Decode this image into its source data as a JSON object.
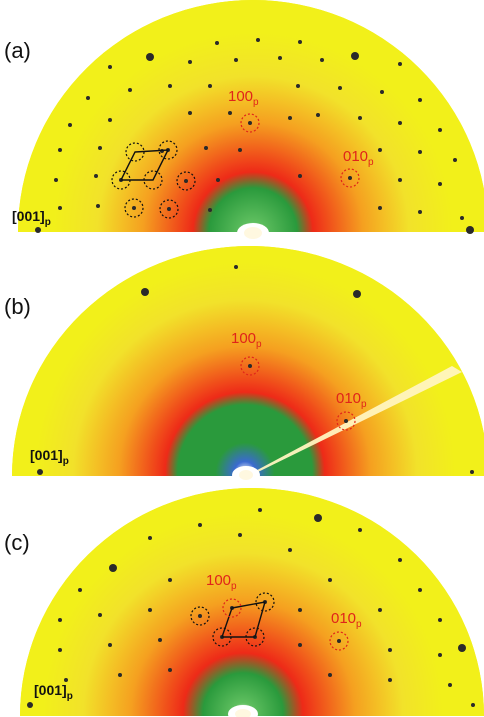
{
  "panels": [
    {
      "label": "(a)",
      "zone_axis": "[001]",
      "zone_sub": "p",
      "spot1": "100",
      "spot1_sub": "p",
      "spot2": "010",
      "spot2_sub": "p"
    },
    {
      "label": "(b)",
      "zone_axis": "[001]",
      "zone_sub": "p",
      "spot1": "100",
      "spot1_sub": "p",
      "spot2": "010",
      "spot2_sub": "p"
    },
    {
      "label": "(c)",
      "zone_axis": "[001]",
      "zone_sub": "p",
      "spot1": "100",
      "spot1_sub": "p",
      "spot2": "010",
      "spot2_sub": "p"
    }
  ],
  "colors": {
    "background": "#f2f01a",
    "halo_orange": "#f5a020",
    "halo_red": "#ee2a18",
    "core_green": "#2a9a3c",
    "spot": "#2a2a2a",
    "label_red": "#e0241a"
  }
}
